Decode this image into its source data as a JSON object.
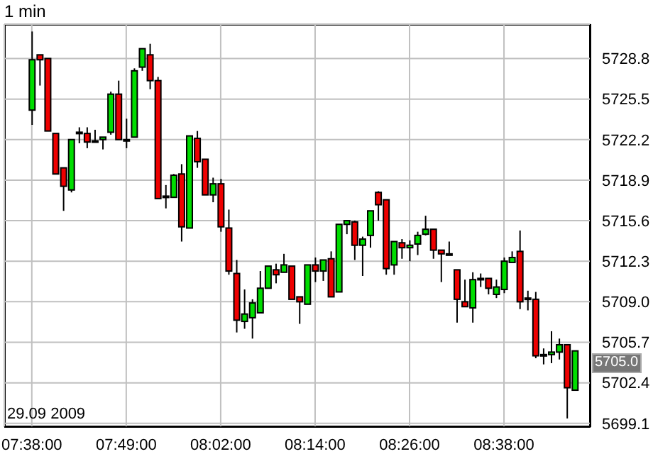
{
  "chart_data": {
    "type": "candlestick",
    "subtitle": "1 min",
    "categories": [
      "07:38:00",
      null,
      null,
      null,
      null,
      null,
      null,
      null,
      null,
      null,
      null,
      null,
      "07:49:00",
      null,
      null,
      null,
      null,
      null,
      null,
      null,
      null,
      null,
      null,
      null,
      "08:02:00",
      null,
      null,
      null,
      null,
      null,
      null,
      null,
      null,
      null,
      null,
      null,
      "08:14:00",
      null,
      null,
      null,
      null,
      null,
      null,
      null,
      null,
      null,
      null,
      null,
      "08:26:00",
      null,
      null,
      null,
      null,
      null,
      null,
      null,
      null,
      null,
      null,
      null,
      "08:38:00",
      null,
      null,
      null,
      null,
      null,
      null,
      null,
      null,
      null
    ],
    "ohlc": [
      [
        5724.6,
        5731.0,
        5723.4,
        5728.7
      ],
      [
        5729.1,
        5729.1,
        5726.6,
        5728.7
      ],
      [
        5728.8,
        5728.8,
        5722.9,
        5722.9
      ],
      [
        5722.7,
        5722.7,
        5719.4,
        5719.4
      ],
      [
        5719.9,
        5719.9,
        5716.4,
        5718.4
      ],
      [
        5718.1,
        5722.2,
        5717.9,
        5722.2
      ],
      [
        5722.8,
        5723.2,
        5721.9,
        5722.7
      ],
      [
        5722.7,
        5723.2,
        5721.5,
        5722.0
      ],
      [
        5722.1,
        5723.0,
        5722.0,
        5722.0
      ],
      [
        5722.2,
        5722.4,
        5721.4,
        5722.4
      ],
      [
        5722.8,
        5726.1,
        5722.6,
        5725.9
      ],
      [
        5725.9,
        5727.0,
        5722.2,
        5722.2
      ],
      [
        5722.2,
        5723.9,
        5721.5,
        5722.2
      ],
      [
        5722.4,
        5728.0,
        5722.4,
        5727.8
      ],
      [
        5728.1,
        5729.6,
        5727.8,
        5729.6
      ],
      [
        5729.1,
        5730.0,
        5726.3,
        5727.0
      ],
      [
        5727.0,
        5727.3,
        5717.4,
        5717.4
      ],
      [
        5717.6,
        5718.5,
        5716.6,
        5717.6
      ],
      [
        5717.5,
        5719.4,
        5717.5,
        5719.3
      ],
      [
        5719.4,
        5720.2,
        5713.9,
        5715.1
      ],
      [
        5715.0,
        5722.5,
        5715.0,
        5722.5
      ],
      [
        5722.3,
        5722.9,
        5719.9,
        5720.4
      ],
      [
        5720.6,
        5720.6,
        5717.7,
        5717.7
      ],
      [
        5717.7,
        5719.1,
        5717.1,
        5718.6
      ],
      [
        5718.6,
        5719.0,
        5714.7,
        5715.1
      ],
      [
        5715.0,
        5716.5,
        5711.2,
        5711.5
      ],
      [
        5711.3,
        5712.4,
        5706.5,
        5707.5
      ],
      [
        5707.4,
        5710.0,
        5706.8,
        5708.0
      ],
      [
        5707.7,
        5709.2,
        5706.0,
        5708.9
      ],
      [
        5708.1,
        5711.5,
        5708.1,
        5710.1
      ],
      [
        5710.1,
        5711.9,
        5710.1,
        5711.9
      ],
      [
        5711.6,
        5712.1,
        5710.5,
        5711.2
      ],
      [
        5711.4,
        5712.9,
        5711.4,
        5712.0
      ],
      [
        5711.9,
        5711.9,
        5709.2,
        5709.2
      ],
      [
        5709.4,
        5709.4,
        5707.2,
        5709.0
      ],
      [
        5708.8,
        5712.0,
        5708.8,
        5712.0
      ],
      [
        5712.0,
        5712.6,
        5710.6,
        5711.5
      ],
      [
        5711.5,
        5712.4,
        5710.7,
        5712.4
      ],
      [
        5712.5,
        5713.1,
        5709.4,
        5709.4
      ],
      [
        5709.8,
        5715.3,
        5709.8,
        5715.3
      ],
      [
        5715.3,
        5715.6,
        5714.5,
        5715.6
      ],
      [
        5715.5,
        5715.6,
        5712.4,
        5713.6
      ],
      [
        5713.6,
        5714.3,
        5711.1,
        5714.1
      ],
      [
        5714.4,
        5716.4,
        5713.4,
        5716.4
      ],
      [
        5717.9,
        5718.0,
        5715.6,
        5716.9
      ],
      [
        5717.3,
        5717.3,
        5711.2,
        5711.7
      ],
      [
        5712.0,
        5713.9,
        5711.2,
        5713.9
      ],
      [
        5713.8,
        5714.1,
        5712.5,
        5713.4
      ],
      [
        5713.4,
        5714.0,
        5712.3,
        5713.6
      ],
      [
        5713.7,
        5714.7,
        5712.8,
        5714.4
      ],
      [
        5714.5,
        5716.0,
        5714.4,
        5714.9
      ],
      [
        5714.9,
        5714.9,
        5712.5,
        5713.2
      ],
      [
        5713.2,
        5713.2,
        5710.6,
        5712.9
      ],
      [
        5712.9,
        5713.9,
        5712.9,
        5712.9
      ],
      [
        5711.6,
        5711.6,
        5707.3,
        5709.2
      ],
      [
        5709.0,
        5710.8,
        5708.6,
        5708.6
      ],
      [
        5708.5,
        5711.4,
        5707.3,
        5710.8
      ],
      [
        5710.9,
        5711.3,
        5710.2,
        5710.9
      ],
      [
        5710.9,
        5710.9,
        5709.6,
        5710.1
      ],
      [
        5709.6,
        5710.8,
        5709.3,
        5710.2
      ],
      [
        5710.0,
        5712.6,
        5709.7,
        5712.3
      ],
      [
        5712.2,
        5713.1,
        5712.2,
        5712.6
      ],
      [
        5713.1,
        5714.8,
        5708.4,
        5709.0
      ],
      [
        5709.3,
        5709.9,
        5708.3,
        5709.3
      ],
      [
        5709.2,
        5709.8,
        5704.4,
        5704.6
      ],
      [
        5704.7,
        5705.2,
        5703.9,
        5704.7
      ],
      [
        5704.7,
        5706.6,
        5704.0,
        5704.9
      ],
      [
        5704.9,
        5706.0,
        5704.3,
        5705.5
      ],
      [
        5705.5,
        5705.5,
        5699.5,
        5702.0
      ],
      [
        5701.8,
        5705.0,
        5701.8,
        5705.0
      ]
    ],
    "ylim": [
      5698.8,
      5731.6
    ],
    "yticks": [
      5699.1,
      5702.4,
      {
        "value": 5705.7,
        "label": "5705.7"
      },
      {
        "value": 5709.0,
        "label": "5709.0"
      },
      5712.3,
      5715.6,
      5718.9,
      5722.2,
      5725.5,
      5728.8
    ],
    "grid": true,
    "annotations": [
      "29.09 2009",
      "5705.0"
    ]
  }
}
